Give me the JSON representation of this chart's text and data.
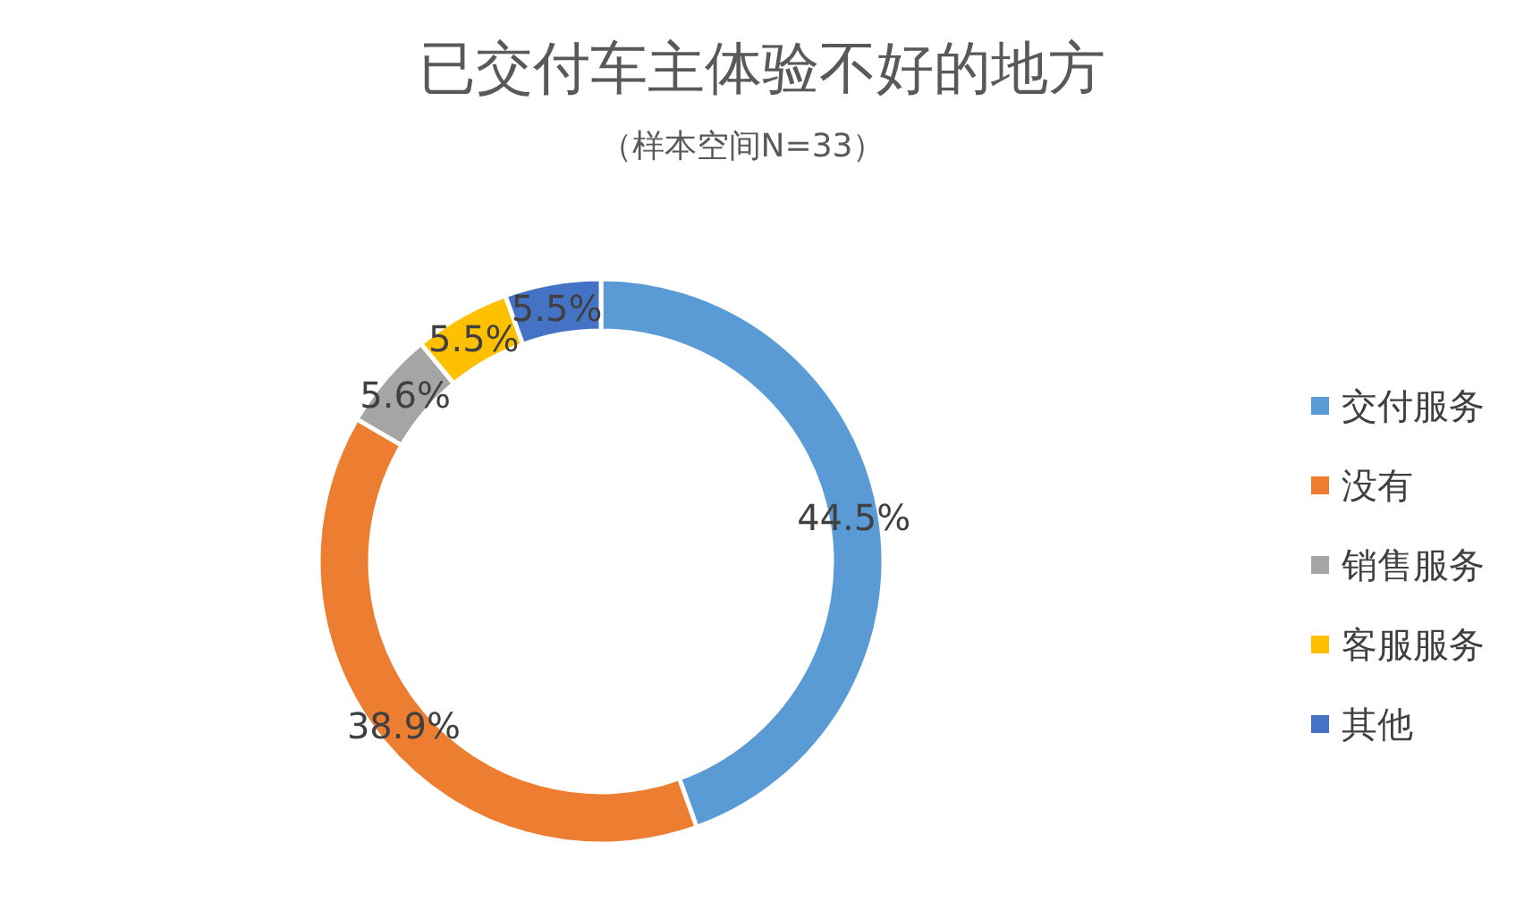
{
  "chart_data": {
    "type": "donut",
    "title": "已交付车主体验不好的地方",
    "subtitle": "（样本空间N=33）",
    "categories": [
      "交付服务",
      "没有",
      "销售服务",
      "客服服务",
      "其他"
    ],
    "values": [
      44.5,
      38.9,
      5.6,
      5.5,
      5.5
    ],
    "value_labels": [
      "44.5%",
      "38.9%",
      "5.6%",
      "5.5%",
      "5.5%"
    ],
    "colors": [
      "#5b9bd5",
      "#ed7d31",
      "#a5a5a5",
      "#ffc000",
      "#4472c4"
    ],
    "legend": "right"
  }
}
